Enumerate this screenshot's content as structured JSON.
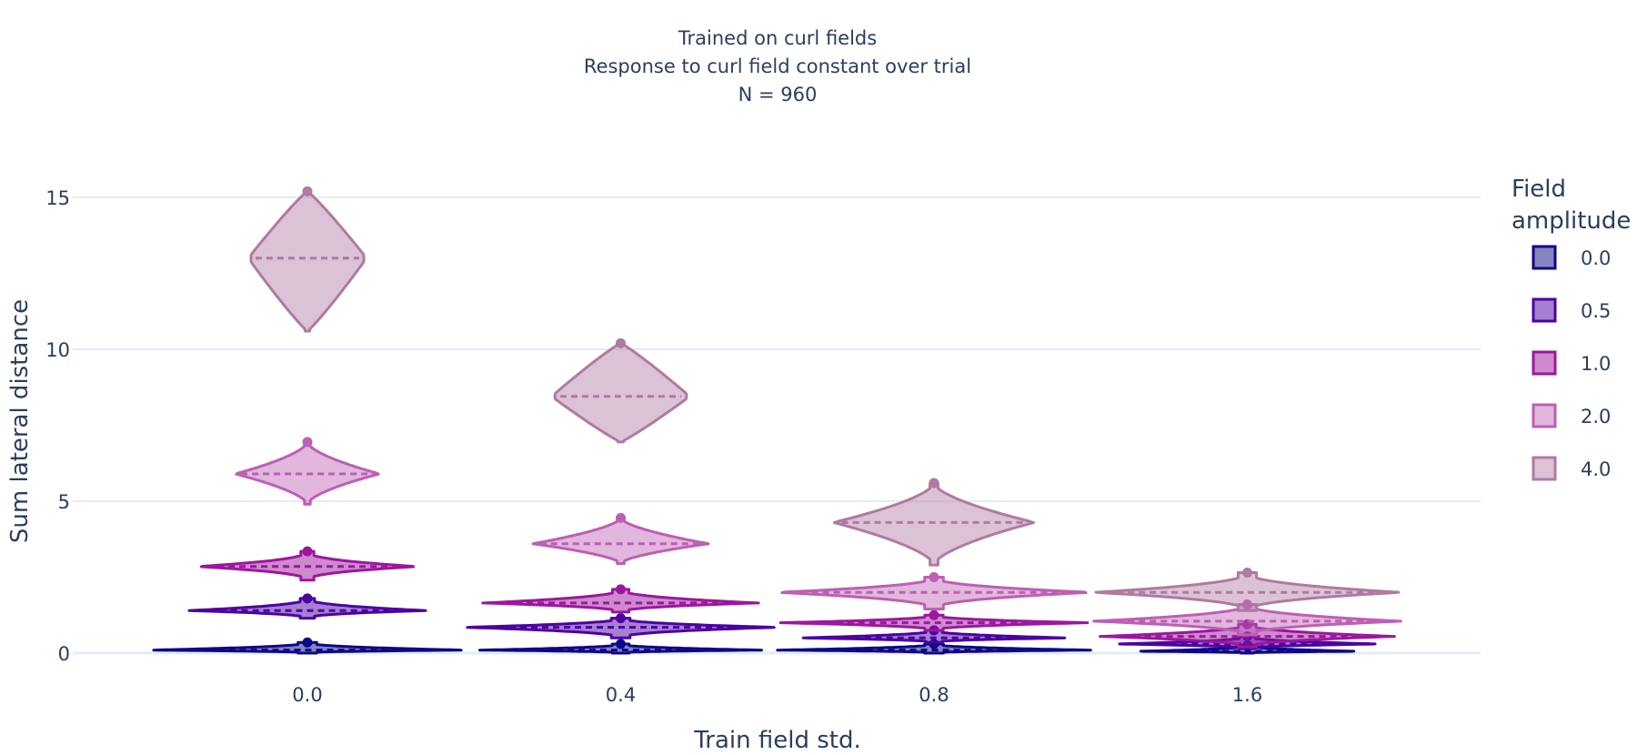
{
  "chart_data": {
    "type": "violin",
    "title_lines": [
      "Trained on curl fields",
      "Response to curl field constant over trial",
      "N = 960"
    ],
    "xlabel": "Train field std.",
    "ylabel": "Sum lateral distance",
    "categories": [
      "0.0",
      "0.4",
      "0.8",
      "1.6"
    ],
    "ylim": [
      -0.4,
      15.5
    ],
    "yticks": [
      0,
      5,
      10,
      15
    ],
    "grid": true,
    "legend": {
      "title_lines": [
        "Field",
        "amplitude"
      ],
      "placement": "right"
    },
    "series": [
      {
        "name": "0.0",
        "line_color": "#0d0887",
        "fill_color": "rgba(13,8,135,0.5)",
        "violins": [
          {
            "category": "0.0",
            "median": 0.1,
            "min": 0.0,
            "max": 0.35,
            "halfwidth": 0.5,
            "shape": "flat"
          },
          {
            "category": "0.4",
            "median": 0.1,
            "min": 0.0,
            "max": 0.3,
            "halfwidth": 0.45,
            "shape": "flat"
          },
          {
            "category": "0.8",
            "median": 0.1,
            "min": 0.0,
            "max": 0.3,
            "halfwidth": 0.5,
            "shape": "flat"
          },
          {
            "category": "1.6",
            "median": 0.06,
            "min": 0.0,
            "max": 0.25,
            "halfwidth": 0.35,
            "shape": "flat"
          }
        ]
      },
      {
        "name": "0.5",
        "line_color": "#4c02a1",
        "fill_color": "rgba(76,2,161,0.5)",
        "violins": [
          {
            "category": "0.0",
            "median": 1.4,
            "min": 1.15,
            "max": 1.8,
            "halfwidth": 0.38,
            "shape": "flat"
          },
          {
            "category": "0.4",
            "median": 0.85,
            "min": 0.5,
            "max": 1.15,
            "halfwidth": 0.5,
            "shape": "flat"
          },
          {
            "category": "0.8",
            "median": 0.5,
            "min": 0.35,
            "max": 0.75,
            "halfwidth": 0.43,
            "shape": "flat"
          },
          {
            "category": "1.6",
            "median": 0.3,
            "min": 0.15,
            "max": 0.55,
            "halfwidth": 0.42,
            "shape": "flat"
          }
        ]
      },
      {
        "name": "1.0",
        "line_color": "#9c179e",
        "fill_color": "rgba(156,23,158,0.5)",
        "violins": [
          {
            "category": "0.0",
            "median": 2.85,
            "min": 2.4,
            "max": 3.35,
            "halfwidth": 0.35,
            "shape": "flat"
          },
          {
            "category": "0.4",
            "median": 1.65,
            "min": 1.35,
            "max": 2.1,
            "halfwidth": 0.44,
            "shape": "flat"
          },
          {
            "category": "0.8",
            "median": 1.0,
            "min": 0.75,
            "max": 1.25,
            "halfwidth": 0.49,
            "shape": "flat"
          },
          {
            "category": "1.6",
            "median": 0.55,
            "min": 0.2,
            "max": 0.95,
            "halfwidth": 0.47,
            "shape": "flat"
          }
        ]
      },
      {
        "name": "2.0",
        "line_color": "#bd5fb4",
        "fill_color": "rgba(189,95,180,0.45)",
        "violins": [
          {
            "category": "0.0",
            "median": 5.9,
            "min": 4.9,
            "max": 6.95,
            "halfwidth": 0.23,
            "shape": "mid"
          },
          {
            "category": "0.4",
            "median": 3.6,
            "min": 2.95,
            "max": 4.45,
            "halfwidth": 0.28,
            "shape": "mid"
          },
          {
            "category": "0.8",
            "median": 2.0,
            "min": 1.45,
            "max": 2.5,
            "halfwidth": 0.5,
            "shape": "flat"
          },
          {
            "category": "1.6",
            "median": 1.05,
            "min": 0.6,
            "max": 1.6,
            "halfwidth": 0.49,
            "shape": "flat"
          }
        ]
      },
      {
        "name": "4.0",
        "line_color": "#b07aa1",
        "fill_color": "rgba(176,122,161,0.45)",
        "violins": [
          {
            "category": "0.0",
            "median": 13.0,
            "min": 10.6,
            "max": 15.2,
            "halfwidth": 0.18,
            "shape": "tall"
          },
          {
            "category": "0.4",
            "median": 8.45,
            "min": 6.95,
            "max": 10.2,
            "halfwidth": 0.21,
            "shape": "tall"
          },
          {
            "category": "0.8",
            "median": 4.3,
            "min": 2.9,
            "max": 5.6,
            "halfwidth": 0.32,
            "shape": "mid"
          },
          {
            "category": "1.6",
            "median": 2.0,
            "min": 1.4,
            "max": 2.65,
            "halfwidth": 0.49,
            "shape": "flat"
          }
        ]
      }
    ]
  }
}
